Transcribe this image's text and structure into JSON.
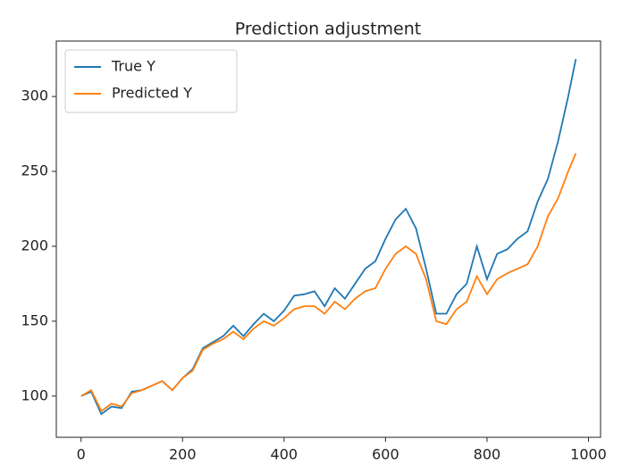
{
  "chart_data": {
    "type": "line",
    "title": "Prediction adjustment",
    "x": [
      0,
      20,
      40,
      60,
      80,
      100,
      120,
      140,
      160,
      180,
      200,
      220,
      240,
      260,
      280,
      300,
      320,
      340,
      360,
      380,
      400,
      420,
      440,
      460,
      480,
      500,
      520,
      540,
      560,
      580,
      600,
      620,
      640,
      660,
      680,
      700,
      720,
      740,
      760,
      780,
      800,
      820,
      840,
      860,
      880,
      900,
      920,
      940,
      960,
      975
    ],
    "series": [
      {
        "name": "True Y",
        "color": "#1f77b4",
        "values": [
          100,
          103,
          88,
          93,
          92,
          103,
          104,
          107,
          110,
          104,
          112,
          118,
          132,
          136,
          140,
          147,
          140,
          148,
          155,
          150,
          157,
          167,
          168,
          170,
          160,
          172,
          165,
          175,
          185,
          190,
          205,
          218,
          225,
          212,
          185,
          155,
          155,
          168,
          175,
          200,
          178,
          195,
          198,
          205,
          210,
          230,
          245,
          270,
          300,
          325
        ]
      },
      {
        "name": "Predicted Y",
        "color": "#ff7f0e",
        "values": [
          100,
          104,
          90,
          95,
          93,
          102,
          104,
          107,
          110,
          104,
          112,
          117,
          131,
          135,
          138,
          143,
          138,
          145,
          150,
          147,
          152,
          158,
          160,
          160,
          155,
          163,
          158,
          165,
          170,
          172,
          185,
          195,
          200,
          195,
          178,
          150,
          148,
          158,
          163,
          180,
          168,
          178,
          182,
          185,
          188,
          200,
          220,
          232,
          250,
          262
        ]
      }
    ],
    "xlim": [
      -48.75,
      1023.75
    ],
    "ylim": [
      72.5,
      337
    ],
    "xticks": [
      0,
      200,
      400,
      600,
      800,
      1000
    ],
    "yticks": [
      100,
      150,
      200,
      250,
      300
    ],
    "legend": "upper left"
  }
}
